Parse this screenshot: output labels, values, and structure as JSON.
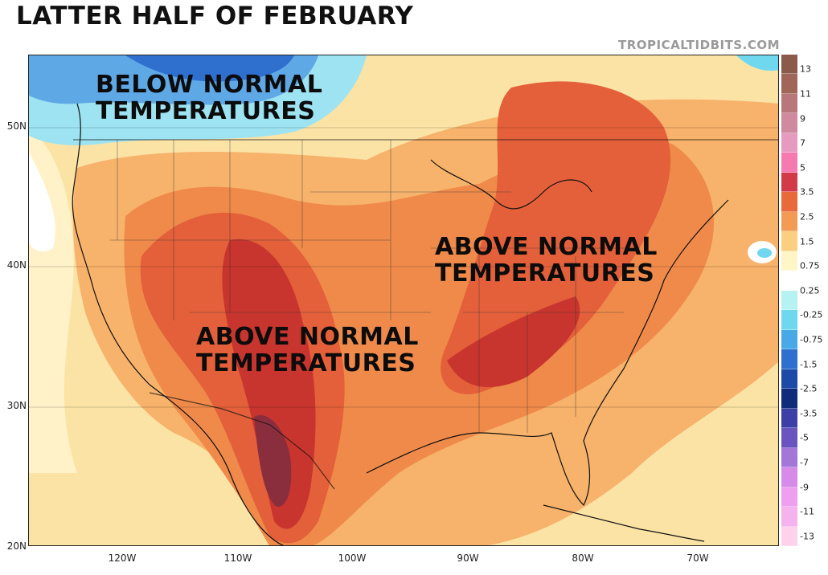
{
  "title": "LATTER HALF OF FEBRUARY",
  "credit": "TROPICALTIDBITS.COM",
  "annotations": {
    "below_nw": [
      "BELOW NORMAL",
      "TEMPERATURES"
    ],
    "above_east": [
      "ABOVE NORMAL",
      "TEMPERATURES"
    ],
    "above_sw": [
      "ABOVE NORMAL",
      "TEMPERATURES"
    ]
  },
  "lat_labels": [
    "50N",
    "40N",
    "30N",
    "20N"
  ],
  "lon_labels": [
    "120W",
    "110W",
    "100W",
    "90W",
    "80W",
    "70W"
  ],
  "colorbar": {
    "labels": [
      "13",
      "11",
      "9",
      "7",
      "5",
      "3.5",
      "2.5",
      "1.5",
      "0.75",
      "0.25",
      "-0.25",
      "-0.75",
      "-1.5",
      "-2.5",
      "-3.5",
      "-5",
      "-7",
      "-9",
      "-11",
      "-13"
    ],
    "colors": [
      "#8b5a4a",
      "#a0665a",
      "#b8787a",
      "#cf8aa0",
      "#e69ac0",
      "#f47ab0",
      "#d23a48",
      "#e86a3a",
      "#f39a55",
      "#fbcf82",
      "#fff6c8",
      "#ffffff",
      "#b6f2f2",
      "#6fd8ef",
      "#49a9e6",
      "#2f70cf",
      "#1d4aa6",
      "#0f2b7a",
      "#3b3fa6",
      "#6a55c0",
      "#a277d8",
      "#d78be8",
      "#ee9ff0",
      "#f5b3ee",
      "#ffd1ea"
    ]
  }
}
